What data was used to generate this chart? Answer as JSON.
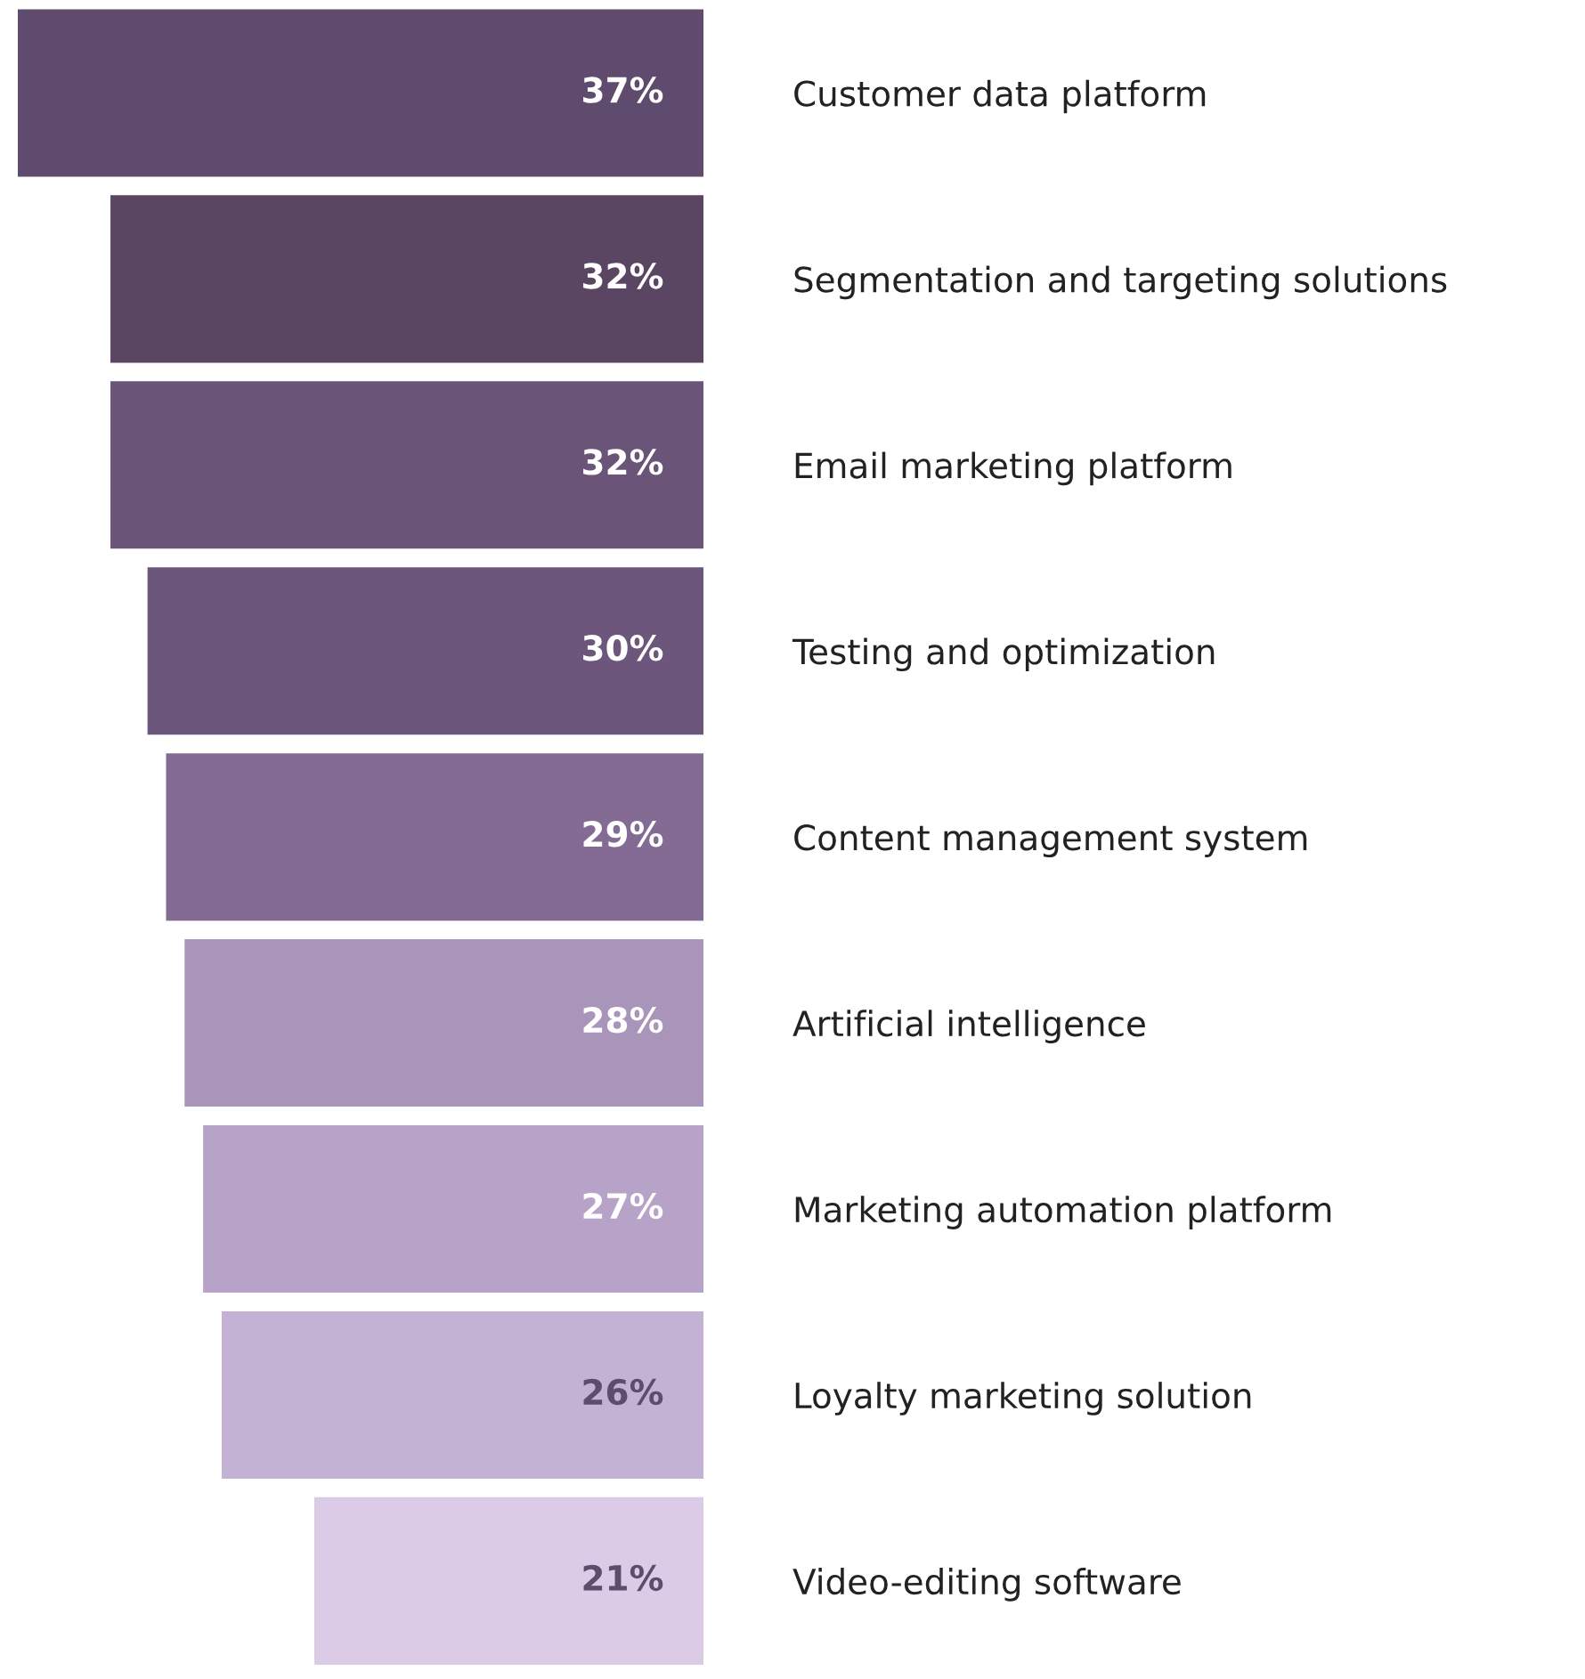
{
  "chart_data": {
    "type": "bar",
    "orientation": "horizontal",
    "value_labels": [
      "37%",
      "32%",
      "32%",
      "30%",
      "29%",
      "28%",
      "27%",
      "26%",
      "21%"
    ],
    "categories": [
      "Customer data platform",
      "Segmentation and targeting solutions",
      "Email marketing platform",
      "Testing and optimization",
      "Content management system",
      "Artificial intelligence",
      "Marketing automation platform",
      "Loyalty marketing solution",
      "Video-editing software"
    ],
    "values": [
      37,
      32,
      32,
      30,
      29,
      28,
      27,
      26,
      21
    ],
    "colors": [
      "#5e4b6e",
      "#5a4563",
      "#6a5478",
      "#6d567c",
      "#846b93",
      "#a994ba",
      "#b6a3c7",
      "#c4b2d4",
      "#dccbe6"
    ]
  }
}
